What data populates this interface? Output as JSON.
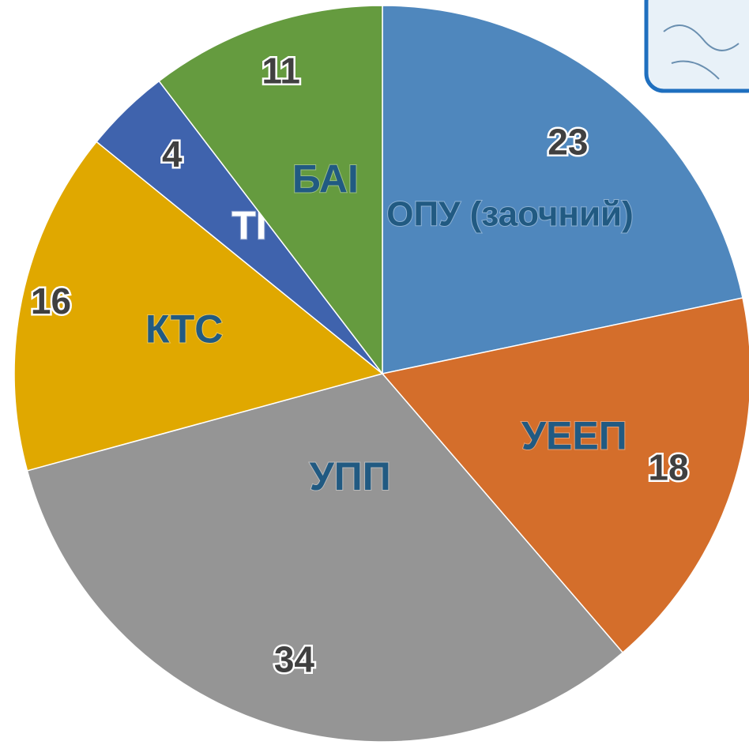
{
  "chart_data": {
    "type": "pie",
    "categories": [
      "ОПУ (заочний)",
      "УЕЕП",
      "УПП",
      "КТС",
      "ТІ",
      "БАІ"
    ],
    "values": [
      23,
      18,
      34,
      16,
      4,
      11
    ],
    "colors": [
      "#4f87bd",
      "#d46e2b",
      "#959595",
      "#e0a800",
      "#3f63ad",
      "#659b3f"
    ]
  }
}
